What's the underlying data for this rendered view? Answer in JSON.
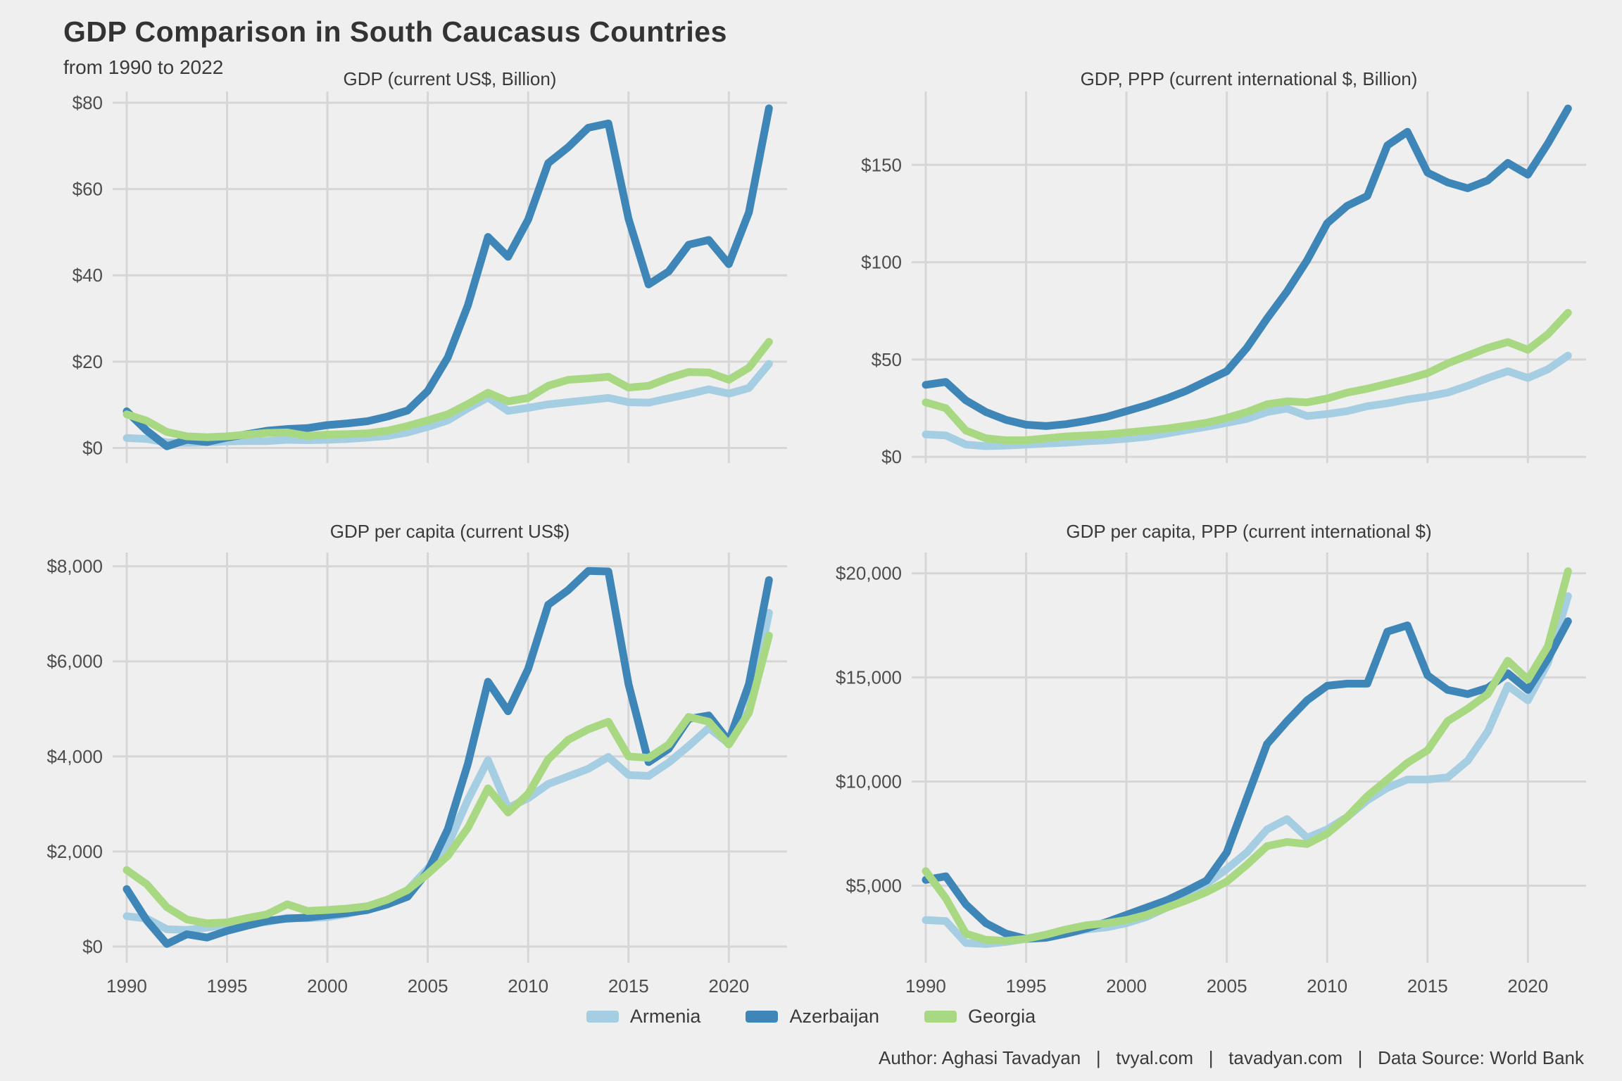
{
  "header": {
    "title": "GDP Comparison in South Caucasus Countries",
    "subtitle": "from 1990 to 2022"
  },
  "colors": {
    "armenia": "#A6CEE3",
    "azerbaijan": "#3E86B8",
    "georgia": "#A9D883",
    "grid": "#D6D6D6",
    "background": "#EFEFEF",
    "axis_text": "#4D4D4D",
    "title_text": "#333333"
  },
  "years": [
    1990,
    1991,
    1992,
    1993,
    1994,
    1995,
    1996,
    1997,
    1998,
    1999,
    2000,
    2001,
    2002,
    2003,
    2004,
    2005,
    2006,
    2007,
    2008,
    2009,
    2010,
    2011,
    2012,
    2013,
    2014,
    2015,
    2016,
    2017,
    2018,
    2019,
    2020,
    2021,
    2022
  ],
  "x_ticks": [
    1990,
    1995,
    2000,
    2005,
    2010,
    2015,
    2020
  ],
  "xlim": [
    1989.3,
    2022.9
  ],
  "chart_data": [
    {
      "id": "gdp_current",
      "type": "line",
      "title": "GDP (current US$, Billion)",
      "ylim": [
        -3.5,
        82.6
      ],
      "y_ticks": [
        {
          "value": 0,
          "label": "$0"
        },
        {
          "value": 20,
          "label": "$20"
        },
        {
          "value": 40,
          "label": "$40"
        },
        {
          "value": 60,
          "label": "$60"
        },
        {
          "value": 80,
          "label": "$80"
        }
      ],
      "show_x_labels": false,
      "series": [
        {
          "name": "Armenia",
          "color_key": "armenia",
          "values": [
            2.3,
            2.1,
            1.3,
            1.2,
            1.3,
            1.5,
            1.6,
            1.6,
            1.9,
            1.8,
            1.9,
            2.1,
            2.4,
            2.8,
            3.6,
            4.9,
            6.4,
            9.2,
            11.7,
            8.6,
            9.3,
            10.1,
            10.6,
            11.1,
            11.6,
            10.6,
            10.5,
            11.5,
            12.5,
            13.6,
            12.6,
            13.9,
            19.5
          ]
        },
        {
          "name": "Azerbaijan",
          "color_key": "azerbaijan",
          "values": [
            8.5,
            4.0,
            0.4,
            1.9,
            1.4,
            2.4,
            3.2,
            4.0,
            4.4,
            4.6,
            5.3,
            5.7,
            6.2,
            7.3,
            8.7,
            13.2,
            21.0,
            33.1,
            48.9,
            44.3,
            52.9,
            66.0,
            69.7,
            74.2,
            75.2,
            53.1,
            37.9,
            40.9,
            47.1,
            48.2,
            42.6,
            54.6,
            78.7
          ]
        },
        {
          "name": "Georgia",
          "color_key": "georgia",
          "values": [
            7.8,
            6.3,
            3.7,
            2.7,
            2.5,
            2.7,
            3.1,
            3.5,
            3.6,
            2.8,
            3.1,
            3.2,
            3.4,
            4.0,
            5.1,
            6.4,
            7.8,
            10.2,
            12.8,
            10.8,
            11.6,
            14.4,
            15.8,
            16.1,
            16.5,
            14.0,
            14.4,
            16.2,
            17.6,
            17.5,
            15.8,
            18.6,
            24.6
          ]
        }
      ]
    },
    {
      "id": "gdp_ppp",
      "type": "line",
      "title": "GDP, PPP (current international $, Billion)",
      "ylim": [
        -3.2,
        187.7
      ],
      "y_ticks": [
        {
          "value": 0,
          "label": "$0"
        },
        {
          "value": 50,
          "label": "$50"
        },
        {
          "value": 100,
          "label": "$100"
        },
        {
          "value": 150,
          "label": "$150"
        }
      ],
      "show_x_labels": false,
      "series": [
        {
          "name": "Armenia",
          "color_key": "armenia",
          "values": [
            11.5,
            11.0,
            6.3,
            5.5,
            5.8,
            6.3,
            6.8,
            7.3,
            8.0,
            8.5,
            9.3,
            10.3,
            12.0,
            13.8,
            15.5,
            17.5,
            19.5,
            23.0,
            24.8,
            21.0,
            22.0,
            23.5,
            26.0,
            27.5,
            29.5,
            31.0,
            33.0,
            36.5,
            40.5,
            44.0,
            40.5,
            45.0,
            52.0
          ]
        },
        {
          "name": "Azerbaijan",
          "color_key": "azerbaijan",
          "values": [
            37.0,
            38.5,
            29.0,
            23.0,
            19.0,
            16.5,
            15.8,
            16.8,
            18.5,
            20.5,
            23.5,
            26.5,
            30.0,
            34.0,
            39.0,
            44.0,
            56.0,
            71.0,
            85.0,
            101.0,
            120.0,
            129.0,
            134.0,
            160.0,
            167.0,
            146.0,
            141.0,
            138.0,
            142.0,
            151.0,
            145.0,
            161.0,
            179.0
          ]
        },
        {
          "name": "Georgia",
          "color_key": "georgia",
          "values": [
            28.0,
            25.0,
            13.5,
            9.5,
            8.5,
            8.5,
            9.5,
            10.5,
            11.0,
            11.5,
            12.5,
            13.5,
            14.5,
            16.0,
            17.5,
            20.0,
            23.0,
            27.0,
            28.5,
            28.0,
            30.0,
            33.0,
            35.0,
            37.5,
            40.0,
            43.0,
            48.0,
            52.0,
            56.0,
            59.0,
            55.0,
            63.0,
            74.0
          ]
        }
      ]
    },
    {
      "id": "gdp_per_capita",
      "type": "line",
      "title": "GDP per capita (current US$)",
      "ylim": [
        -340,
        8290
      ],
      "y_ticks": [
        {
          "value": 0,
          "label": "$0"
        },
        {
          "value": 2000,
          "label": "$2,000"
        },
        {
          "value": 4000,
          "label": "$4,000"
        },
        {
          "value": 6000,
          "label": "$6,000"
        },
        {
          "value": 8000,
          "label": "$8,000"
        }
      ],
      "show_x_labels": true,
      "series": [
        {
          "name": "Armenia",
          "color_key": "armenia",
          "values": [
            640,
            590,
            365,
            350,
            400,
            455,
            505,
            520,
            605,
            595,
            620,
            690,
            785,
            935,
            1190,
            1640,
            2140,
            3090,
            3920,
            2920,
            3120,
            3420,
            3580,
            3740,
            3990,
            3610,
            3590,
            3870,
            4220,
            4600,
            4270,
            4970,
            7020
          ]
        },
        {
          "name": "Azerbaijan",
          "color_key": "azerbaijan",
          "values": [
            1210,
            550,
            55,
            260,
            190,
            330,
            440,
            540,
            590,
            610,
            660,
            710,
            770,
            890,
            1050,
            1580,
            2470,
            3850,
            5570,
            4950,
            5840,
            7190,
            7500,
            7900,
            7890,
            5520,
            3880,
            4160,
            4790,
            4860,
            4320,
            5520,
            7710
          ]
        },
        {
          "name": "Georgia",
          "color_key": "georgia",
          "values": [
            1610,
            1310,
            830,
            570,
            490,
            510,
            600,
            680,
            890,
            750,
            770,
            800,
            850,
            990,
            1190,
            1530,
            1910,
            2500,
            3330,
            2820,
            3210,
            3940,
            4350,
            4570,
            4730,
            4000,
            3970,
            4250,
            4830,
            4730,
            4250,
            4920,
            6540
          ]
        }
      ]
    },
    {
      "id": "gdp_per_capita_ppp",
      "type": "line",
      "title": "GDP per capita, PPP (current international $)",
      "ylim": [
        1300,
        21000
      ],
      "y_ticks": [
        {
          "value": 5000,
          "label": "$5,000"
        },
        {
          "value": 10000,
          "label": "$10,000"
        },
        {
          "value": 15000,
          "label": "$15,000"
        },
        {
          "value": 20000,
          "label": "$20,000"
        }
      ],
      "show_x_labels": true,
      "series": [
        {
          "name": "Armenia",
          "color_key": "armenia",
          "values": [
            3350,
            3300,
            2250,
            2200,
            2300,
            2450,
            2550,
            2700,
            2900,
            3000,
            3200,
            3500,
            3950,
            4500,
            5100,
            5800,
            6600,
            7700,
            8200,
            7300,
            7700,
            8300,
            9100,
            9700,
            10100,
            10100,
            10200,
            11000,
            12400,
            14600,
            13900,
            15700,
            18900
          ]
        },
        {
          "name": "Azerbaijan",
          "color_key": "azerbaijan",
          "values": [
            5280,
            5450,
            4100,
            3200,
            2700,
            2450,
            2500,
            2700,
            2950,
            3250,
            3600,
            3950,
            4300,
            4750,
            5250,
            6600,
            9200,
            11800,
            12900,
            13900,
            14600,
            14700,
            14700,
            17200,
            17500,
            15100,
            14400,
            14200,
            14500,
            15200,
            14400,
            15900,
            17700
          ]
        },
        {
          "name": "Georgia",
          "color_key": "georgia",
          "values": [
            5700,
            4400,
            2700,
            2400,
            2350,
            2450,
            2650,
            2900,
            3100,
            3200,
            3350,
            3600,
            3950,
            4300,
            4700,
            5200,
            6000,
            6900,
            7100,
            7000,
            7500,
            8300,
            9300,
            10100,
            10900,
            11500,
            12900,
            13500,
            14200,
            15800,
            14900,
            16500,
            20100
          ]
        }
      ]
    }
  ],
  "legend": {
    "position": "bottom-center",
    "items": [
      {
        "label": "Armenia",
        "color_key": "armenia"
      },
      {
        "label": "Azerbaijan",
        "color_key": "azerbaijan"
      },
      {
        "label": "Georgia",
        "color_key": "georgia"
      }
    ]
  },
  "caption": {
    "text": "Author: Aghasi Tavadyan   |   tvyal.com   |   tavadyan.com   |   Data Source: World Bank"
  }
}
